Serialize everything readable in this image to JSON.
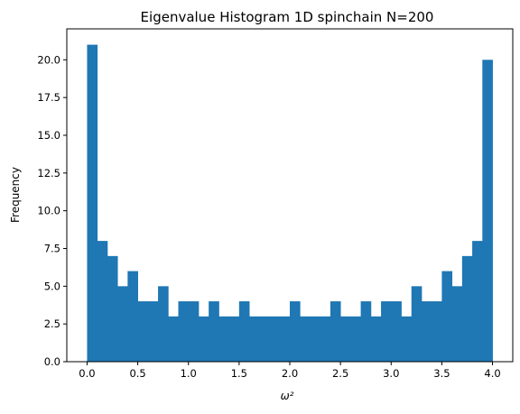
{
  "chart_data": {
    "type": "bar",
    "title": "Eigenvalue Histogram 1D spinchain N=200",
    "xlabel": "ω²",
    "ylabel": "Frequency",
    "xlim": [
      -0.2,
      4.2
    ],
    "ylim": [
      0,
      22.05
    ],
    "xticks": [
      0.0,
      0.5,
      1.0,
      1.5,
      2.0,
      2.5,
      3.0,
      3.5,
      4.0
    ],
    "xtick_labels": [
      "0.0",
      "0.5",
      "1.0",
      "1.5",
      "2.0",
      "2.5",
      "3.0",
      "3.5",
      "4.0"
    ],
    "yticks": [
      0.0,
      2.5,
      5.0,
      7.5,
      10.0,
      12.5,
      15.0,
      17.5,
      20.0
    ],
    "ytick_labels": [
      "0.0",
      "2.5",
      "5.0",
      "7.5",
      "10.0",
      "12.5",
      "15.0",
      "17.5",
      "20.0"
    ],
    "bin_start": 0.0,
    "bin_end": 4.0,
    "values": [
      21,
      8,
      7,
      5,
      6,
      4,
      4,
      5,
      3,
      4,
      4,
      3,
      4,
      3,
      3,
      4,
      3,
      3,
      3,
      3,
      4,
      3,
      3,
      3,
      4,
      3,
      3,
      4,
      3,
      4,
      4,
      3,
      5,
      4,
      4,
      6,
      5,
      7,
      8,
      20
    ],
    "bar_color": "#1f77b4",
    "grid": false,
    "legend": "none"
  }
}
